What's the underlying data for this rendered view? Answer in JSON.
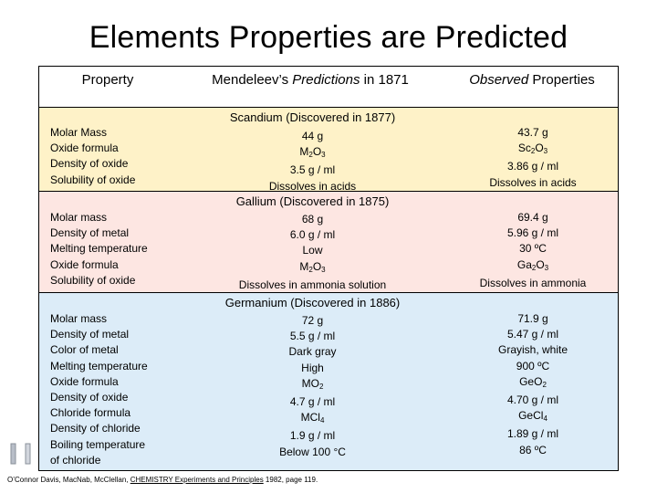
{
  "title": "Elements Properties are Predicted",
  "headers": {
    "property": "Property",
    "pred_prefix": "Mendeleev’s ",
    "pred_em": "Predictions",
    "pred_suffix": " in 1871",
    "obs_em": "Observed",
    "obs_suffix": " Properties"
  },
  "scandium": {
    "title": "Scandium (Discovered in 1877)",
    "props": [
      "Molar Mass",
      "Oxide formula",
      "Density of oxide",
      "Solubility of oxide"
    ],
    "predicted": {
      "mass": "44 g",
      "oxide": [
        "M",
        "2",
        "O",
        "3"
      ],
      "density": "3.5 g / ml",
      "solubility": "Dissolves in acids"
    },
    "observed": {
      "mass": "43.7 g",
      "oxide": [
        "Sc",
        "2",
        "O",
        "3"
      ],
      "density": "3.86 g / ml",
      "solubility": "Dissolves in acids"
    }
  },
  "gallium": {
    "title": "Gallium (Discovered in 1875)",
    "props": [
      "Molar mass",
      "Density of metal",
      "Melting temperature",
      "Oxide formula",
      "Solubility of oxide"
    ],
    "predicted": {
      "mass": "68 g",
      "density": "6.0 g / ml",
      "melting": "Low",
      "oxide": [
        "M",
        "2",
        "O",
        "3"
      ],
      "solubility": "Dissolves in ammonia solution"
    },
    "observed": {
      "mass": "69.4 g",
      "density": "5.96 g / ml",
      "melting": "30 ºC",
      "oxide": [
        "Ga",
        "2",
        "O",
        "3"
      ],
      "solubility": "Dissolves in ammonia"
    }
  },
  "germanium": {
    "title": "Germanium (Discovered in 1886)",
    "props": [
      "Molar mass",
      "Density of metal",
      "Color of metal",
      "Melting temperature",
      "Oxide formula",
      "Density of oxide",
      "Chloride formula",
      "Density of chloride",
      "Boiling temperature",
      "of chloride"
    ],
    "predicted": {
      "mass": "72 g",
      "density": "5.5 g / ml",
      "color": "Dark gray",
      "melting": "High",
      "oxide": [
        "MO",
        "2"
      ],
      "oxide_density": "4.7 g / ml",
      "chloride": [
        "MCl",
        "4"
      ],
      "chloride_density": "1.9 g / ml",
      "boiling": "Below 100 °C"
    },
    "observed": {
      "mass": "71.9 g",
      "density": "5.47 g / ml",
      "color": "Grayish, white",
      "melting": "900 ºC",
      "oxide": [
        "GeO",
        "2"
      ],
      "oxide_density": "4.70 g / ml",
      "chloride": [
        "GeCl",
        "4"
      ],
      "chloride_density": "1.89 g / ml",
      "boiling": "86 ºC"
    }
  },
  "footer": {
    "prefix": "O’Connor Davis, MacNab, McClellan, ",
    "book": "CHEMISTRY Experiments and Principles",
    "suffix": " 1982, page 119."
  },
  "icons": {
    "nav": "first-slide-icon"
  }
}
